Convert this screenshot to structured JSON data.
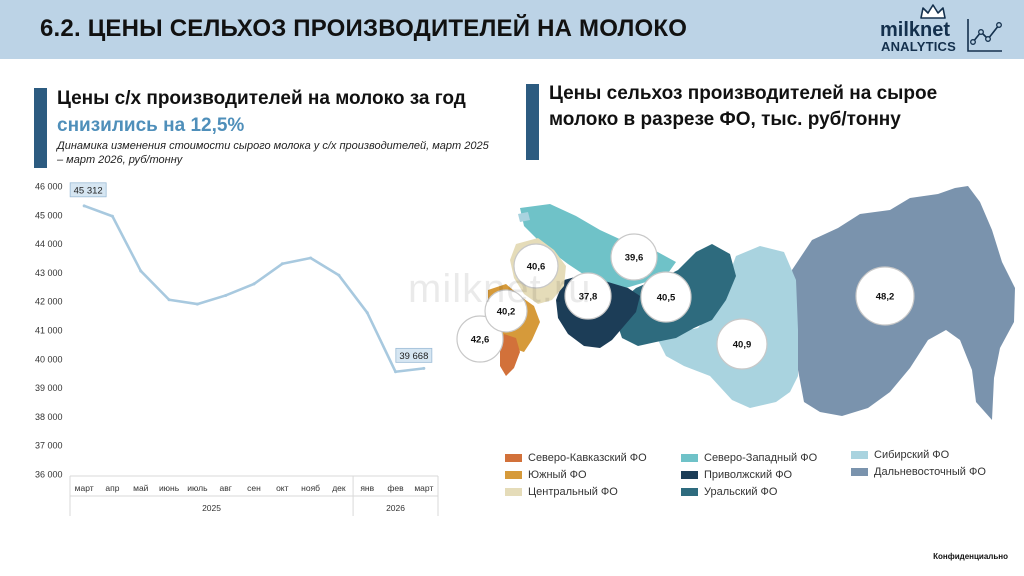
{
  "header": {
    "title": "6.2. ЦЕНЫ СЕЛЬХОЗ ПРОИЗВОДИТЕЛЕЙ НА МОЛОКО"
  },
  "logo": {
    "name": "milknet",
    "sub": "ANALYTICS"
  },
  "left": {
    "heading_line1": "Цены с/х производителей на молоко за год",
    "heading_line2": "снизились на 12,5%",
    "subtitle": "Динамика изменения стоимости сырого молока у с/х производителей, март 2025 – март 2026, руб/тонну"
  },
  "right": {
    "heading": "Цены сельхоз производителей на сырое молоко в разрезе ФО, тыс. руб/тонну"
  },
  "watermark": "milknet.ru",
  "footer": "Конфиденциально",
  "colors": {
    "line": "#a8c9df",
    "accent_bar": "#2c5b80",
    "highlight_blue": "#4f8fba"
  },
  "chart_data": [
    {
      "type": "line",
      "title": "",
      "categories": [
        "март",
        "апр",
        "май",
        "июнь",
        "июль",
        "авг",
        "сен",
        "окт",
        "нояб",
        "дек",
        "янв",
        "фев",
        "март"
      ],
      "year_groups": [
        {
          "label": "2025",
          "count": 10
        },
        {
          "label": "2026",
          "count": 3
        }
      ],
      "series": [
        {
          "values": [
            45312,
            44950,
            43050,
            42050,
            41900,
            42200,
            42600,
            43300,
            43500,
            42900,
            41600,
            39550,
            39668
          ]
        }
      ],
      "data_labels": [
        {
          "index": 0,
          "text": "45 312"
        },
        {
          "index": 12,
          "text": "39 668"
        }
      ],
      "ylim": [
        36000,
        46000
      ],
      "yticks": [
        "36 000",
        "37 000",
        "38 000",
        "39 000",
        "40 000",
        "41 000",
        "42 000",
        "43 000",
        "44 000",
        "45 000",
        "46 000"
      ],
      "grid": false
    },
    {
      "type": "map",
      "region_values": [
        {
          "region": "Северо-Кавказский ФО",
          "value": "42,6",
          "color": "#d2713a"
        },
        {
          "region": "Южный ФО",
          "value": "40,2",
          "color": "#d69a3a"
        },
        {
          "region": "Центральный ФО",
          "value": "40,6",
          "color": "#e5dcb9"
        },
        {
          "region": "Северо-Западный ФО",
          "value": "39,6",
          "color": "#6fc2c8"
        },
        {
          "region": "Приволжский ФО",
          "value": "37,8",
          "color": "#1c3d57"
        },
        {
          "region": "Уральский ФО",
          "value": "40,5",
          "color": "#2e6b7e"
        },
        {
          "region": "Сибирский ФО",
          "value": "40,9",
          "color": "#a9d3df"
        },
        {
          "region": "Дальневосточный ФО",
          "value": "48,2",
          "color": "#7a93ad"
        }
      ],
      "legend": [
        {
          "label": "Северо-Кавказский ФО",
          "color": "#d2713a"
        },
        {
          "label": "Южный ФО",
          "color": "#d69a3a"
        },
        {
          "label": "Центральный ФО",
          "color": "#e5dcb9"
        },
        {
          "label": "Северо-Западный ФО",
          "color": "#6fc2c8"
        },
        {
          "label": "Приволжский ФО",
          "color": "#1c3d57"
        },
        {
          "label": "Уральский ФО",
          "color": "#2e6b7e"
        },
        {
          "label": "Сибирский ФО",
          "color": "#a9d3df"
        },
        {
          "label": "Дальневосточный ФО",
          "color": "#7a93ad"
        }
      ]
    }
  ]
}
